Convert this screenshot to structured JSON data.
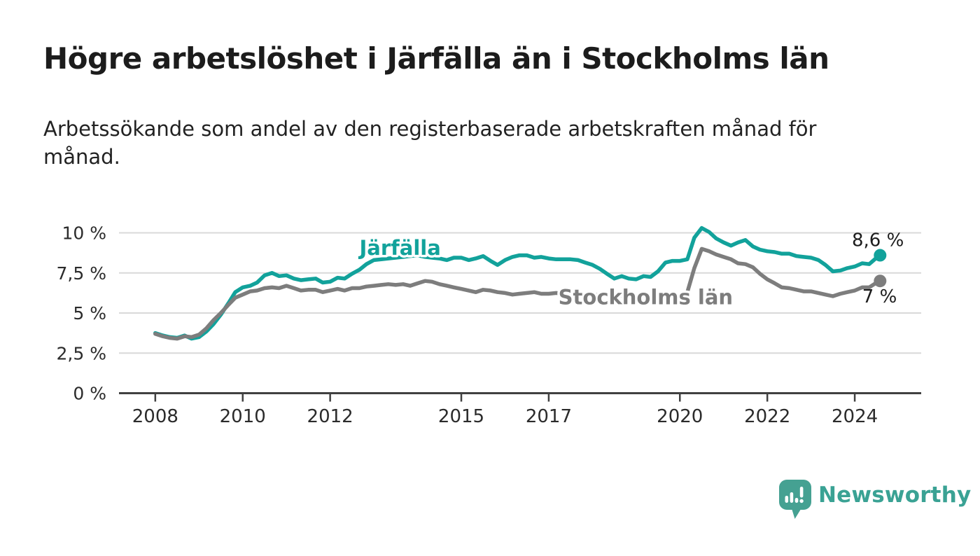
{
  "header": {
    "title": "Högre arbetslöshet i Järfälla än i Stockholms län",
    "subtitle": "Arbetssökande som andel av den registerbaserade arbetskraften månad för månad."
  },
  "footer": {
    "brand": "Newsworthy"
  },
  "colors": {
    "jarfalla": "#12a29b",
    "stockholms_lan": "#7d7d7d",
    "axis": "#404040",
    "grid": "#d9d9d9",
    "text": "#1c1c1c",
    "brand_teal": "#3aa294",
    "logo_bubble": "#45a192"
  },
  "chart_data": {
    "type": "line",
    "title": "Högre arbetslöshet i Järfälla än i Stockholms län",
    "subtitle": "Arbetssökande som andel av den registerbaserade arbetskraften månad för månad.",
    "xlabel": "",
    "ylabel": "",
    "grid": "horizontal",
    "legend_position": "inline-annotations",
    "xlim": [
      2007.17,
      2025.52
    ],
    "ylim": [
      0,
      10
    ],
    "y_ticks": [
      {
        "value": 0,
        "label": "0 %"
      },
      {
        "value": 2.5,
        "label": "2,5 %"
      },
      {
        "value": 5,
        "label": "5 %"
      },
      {
        "value": 7.5,
        "label": "7,5 %"
      },
      {
        "value": 10,
        "label": "10 %"
      }
    ],
    "x_ticks": [
      {
        "value": 2008,
        "label": "2008"
      },
      {
        "value": 2010,
        "label": "2010"
      },
      {
        "value": 2012,
        "label": "2012"
      },
      {
        "value": 2015,
        "label": "2015"
      },
      {
        "value": 2017,
        "label": "2017"
      },
      {
        "value": 2020,
        "label": "2020"
      },
      {
        "value": 2022,
        "label": "2022"
      },
      {
        "value": 2024,
        "label": "2024"
      }
    ],
    "x": [
      2008,
      2008.17,
      2008.33,
      2008.5,
      2008.67,
      2008.83,
      2009,
      2009.17,
      2009.33,
      2009.5,
      2009.67,
      2009.83,
      2010,
      2010.17,
      2010.33,
      2010.5,
      2010.67,
      2010.83,
      2011,
      2011.17,
      2011.33,
      2011.5,
      2011.67,
      2011.83,
      2012,
      2012.17,
      2012.33,
      2012.5,
      2012.67,
      2012.83,
      2013,
      2013.17,
      2013.33,
      2013.5,
      2013.67,
      2013.83,
      2014,
      2014.17,
      2014.33,
      2014.5,
      2014.67,
      2014.83,
      2015,
      2015.17,
      2015.33,
      2015.5,
      2015.67,
      2015.83,
      2016,
      2016.17,
      2016.33,
      2016.5,
      2016.67,
      2016.83,
      2017,
      2017.17,
      2017.33,
      2017.5,
      2017.67,
      2017.83,
      2018,
      2018.17,
      2018.33,
      2018.5,
      2018.67,
      2018.83,
      2019,
      2019.17,
      2019.33,
      2019.5,
      2019.67,
      2019.83,
      2020,
      2020.17,
      2020.33,
      2020.5,
      2020.67,
      2020.83,
      2021,
      2021.17,
      2021.33,
      2021.5,
      2021.67,
      2021.83,
      2022,
      2022.17,
      2022.33,
      2022.5,
      2022.67,
      2022.83,
      2023,
      2023.17,
      2023.33,
      2023.5,
      2023.67,
      2023.83,
      2024,
      2024.17,
      2024.33,
      2024.5,
      2024.58
    ],
    "series": [
      {
        "id": "jarfalla",
        "name": "Järfälla",
        "color": "#12a29b",
        "end_label": "8,6 %",
        "end_value": 8.6,
        "values": [
          3.75,
          3.6,
          3.5,
          3.45,
          3.6,
          3.4,
          3.5,
          3.85,
          4.3,
          4.9,
          5.6,
          6.3,
          6.6,
          6.7,
          6.9,
          7.35,
          7.5,
          7.3,
          7.35,
          7.15,
          7.05,
          7.1,
          7.15,
          6.9,
          6.95,
          7.2,
          7.15,
          7.45,
          7.7,
          8.05,
          8.3,
          8.35,
          8.4,
          8.45,
          8.5,
          8.55,
          8.6,
          8.5,
          8.45,
          8.4,
          8.3,
          8.45,
          8.45,
          8.3,
          8.4,
          8.55,
          8.25,
          8.0,
          8.3,
          8.5,
          8.6,
          8.6,
          8.45,
          8.5,
          8.4,
          8.35,
          8.35,
          8.35,
          8.3,
          8.15,
          8.0,
          7.75,
          7.45,
          7.15,
          7.3,
          7.15,
          7.1,
          7.3,
          7.25,
          7.6,
          8.15,
          8.25,
          8.25,
          8.35,
          9.7,
          10.3,
          10.05,
          9.65,
          9.4,
          9.2,
          9.4,
          9.55,
          9.15,
          8.95,
          8.85,
          8.8,
          8.7,
          8.7,
          8.55,
          8.5,
          8.45,
          8.3,
          8.0,
          7.6,
          7.65,
          7.8,
          7.9,
          8.1,
          8.05,
          8.45,
          8.6
        ]
      },
      {
        "id": "stockholms-lan",
        "name": "Stockholms län",
        "color": "#7d7d7d",
        "end_label": "7 %",
        "end_value": 7.0,
        "values": [
          3.7,
          3.55,
          3.45,
          3.4,
          3.55,
          3.5,
          3.65,
          4.05,
          4.55,
          5.0,
          5.5,
          5.95,
          6.15,
          6.35,
          6.4,
          6.55,
          6.6,
          6.55,
          6.7,
          6.55,
          6.4,
          6.45,
          6.45,
          6.3,
          6.4,
          6.5,
          6.4,
          6.55,
          6.55,
          6.65,
          6.7,
          6.75,
          6.8,
          6.75,
          6.8,
          6.7,
          6.85,
          7.0,
          6.95,
          6.8,
          6.7,
          6.6,
          6.5,
          6.4,
          6.3,
          6.45,
          6.4,
          6.3,
          6.25,
          6.15,
          6.2,
          6.25,
          6.3,
          6.2,
          6.2,
          6.25,
          6.2,
          6.15,
          6.2,
          6.15,
          6.1,
          6.15,
          6.1,
          6.05,
          6.1,
          6.05,
          6.05,
          6.0,
          5.95,
          5.95,
          6.0,
          6.05,
          6.1,
          6.3,
          7.8,
          9.0,
          8.85,
          8.65,
          8.5,
          8.35,
          8.1,
          8.05,
          7.85,
          7.45,
          7.1,
          6.85,
          6.6,
          6.55,
          6.45,
          6.35,
          6.35,
          6.25,
          6.15,
          6.05,
          6.2,
          6.3,
          6.4,
          6.6,
          6.6,
          6.9,
          7.0
        ]
      }
    ],
    "annotations": [
      {
        "series": "jarfalla",
        "text": "Järfälla",
        "x": 2012.67,
        "y": 8.62,
        "color": "#12a29b"
      },
      {
        "series": "stockholms-lan",
        "text": "Stockholms län",
        "x": 2017.22,
        "y": 5.55,
        "color": "#7d7d7d"
      }
    ]
  }
}
